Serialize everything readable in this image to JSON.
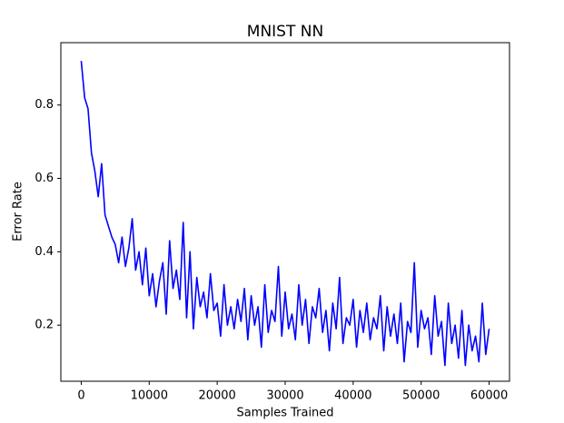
{
  "chart_data": {
    "type": "line",
    "title": "MNIST NN",
    "x_label": "Samples Trained",
    "y_label": "Error Rate",
    "x": [
      0,
      500,
      1000,
      1500,
      2000,
      2500,
      3000,
      3500,
      4000,
      4500,
      5000,
      5500,
      6000,
      6500,
      7000,
      7500,
      8000,
      8500,
      9000,
      9500,
      10000,
      10500,
      11000,
      11500,
      12000,
      12500,
      13000,
      13500,
      14000,
      14500,
      15000,
      15500,
      16000,
      16500,
      17000,
      17500,
      18000,
      18500,
      19000,
      19500,
      20000,
      20500,
      21000,
      21500,
      22000,
      22500,
      23000,
      23500,
      24000,
      24500,
      25000,
      25500,
      26000,
      26500,
      27000,
      27500,
      28000,
      28500,
      29000,
      29500,
      30000,
      30500,
      31000,
      31500,
      32000,
      32500,
      33000,
      33500,
      34000,
      34500,
      35000,
      35500,
      36000,
      36500,
      37000,
      37500,
      38000,
      38500,
      39000,
      39500,
      40000,
      40500,
      41000,
      41500,
      42000,
      42500,
      43000,
      43500,
      44000,
      44500,
      45000,
      45500,
      46000,
      46500,
      47000,
      47500,
      48000,
      48500,
      49000,
      49500,
      50000,
      50500,
      51000,
      51500,
      52000,
      52500,
      53000,
      53500,
      54000,
      54500,
      55000,
      55500,
      56000,
      56500,
      57000,
      57500,
      58000,
      58500,
      59000,
      59500,
      60000
    ],
    "series": [
      {
        "color": "#0000ff",
        "values": [
          0.92,
          0.82,
          0.79,
          0.67,
          0.62,
          0.55,
          0.64,
          0.5,
          0.47,
          0.44,
          0.42,
          0.37,
          0.44,
          0.36,
          0.41,
          0.49,
          0.35,
          0.4,
          0.31,
          0.41,
          0.28,
          0.34,
          0.25,
          0.32,
          0.37,
          0.23,
          0.43,
          0.3,
          0.35,
          0.27,
          0.48,
          0.22,
          0.4,
          0.19,
          0.33,
          0.25,
          0.29,
          0.22,
          0.34,
          0.24,
          0.26,
          0.17,
          0.31,
          0.2,
          0.25,
          0.19,
          0.27,
          0.21,
          0.3,
          0.16,
          0.28,
          0.2,
          0.25,
          0.14,
          0.31,
          0.18,
          0.24,
          0.21,
          0.36,
          0.17,
          0.29,
          0.19,
          0.23,
          0.16,
          0.31,
          0.2,
          0.27,
          0.15,
          0.25,
          0.22,
          0.3,
          0.18,
          0.24,
          0.13,
          0.26,
          0.19,
          0.33,
          0.15,
          0.22,
          0.2,
          0.27,
          0.14,
          0.24,
          0.18,
          0.26,
          0.16,
          0.22,
          0.19,
          0.28,
          0.13,
          0.25,
          0.17,
          0.23,
          0.15,
          0.26,
          0.1,
          0.21,
          0.18,
          0.37,
          0.14,
          0.24,
          0.19,
          0.22,
          0.12,
          0.28,
          0.17,
          0.21,
          0.09,
          0.26,
          0.15,
          0.2,
          0.11,
          0.24,
          0.09,
          0.2,
          0.13,
          0.17,
          0.1,
          0.26,
          0.12,
          0.19
        ]
      }
    ],
    "xlim": [
      -3000,
      63000
    ],
    "ylim": [
      0.047,
      0.97
    ],
    "xticks": [
      0,
      10000,
      20000,
      30000,
      40000,
      50000,
      60000
    ],
    "yticks": [
      0.2,
      0.4,
      0.6,
      0.8
    ],
    "grid": false
  }
}
